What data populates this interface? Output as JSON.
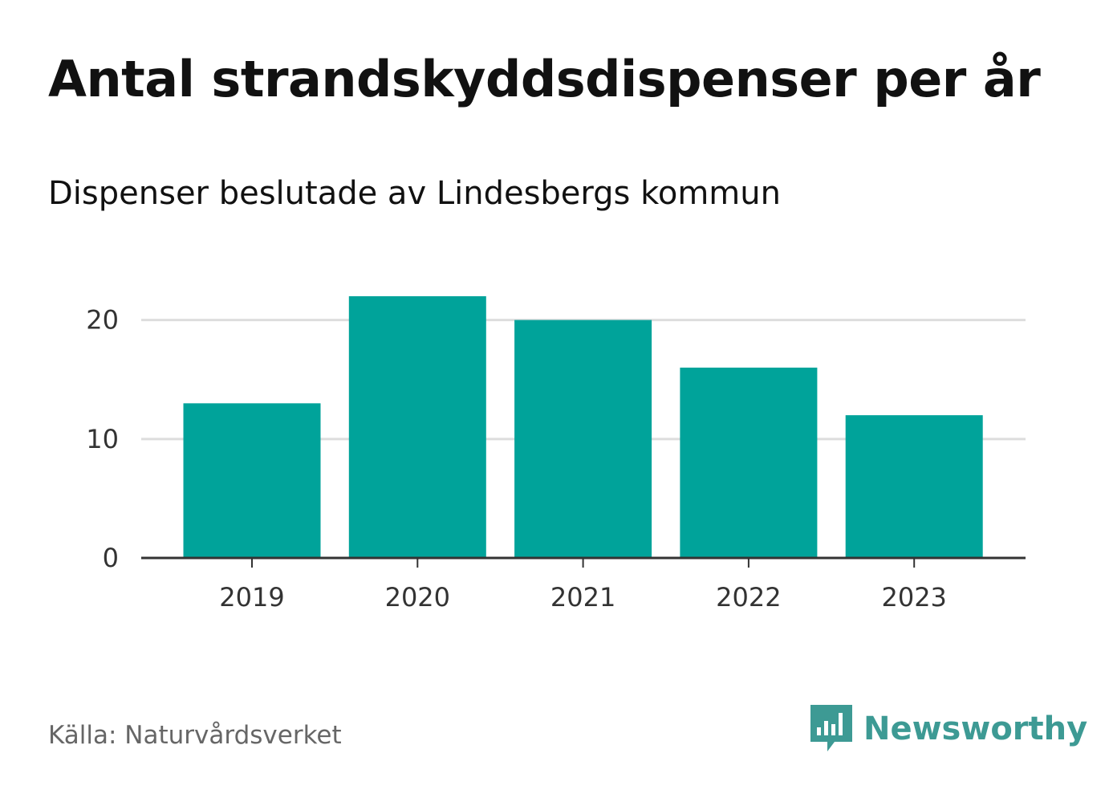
{
  "title": "Antal strandskyddsdispenser per år",
  "subtitle": "Dispenser beslutade av Lindesbergs kommun",
  "source": "Källa: Naturvårdsverket",
  "brand": {
    "name": "Newsworthy",
    "icon": "newsworthy-logo-icon",
    "color": "#3d9a94"
  },
  "colors": {
    "bar": "#00a39a",
    "grid": "#dddddd",
    "axis": "#333333"
  },
  "chart_data": {
    "type": "bar",
    "title": "Antal strandskyddsdispenser per år",
    "subtitle": "Dispenser beslutade av Lindesbergs kommun",
    "categories": [
      "2019",
      "2020",
      "2021",
      "2022",
      "2023"
    ],
    "values": [
      13,
      22,
      20,
      16,
      12
    ],
    "xlabel": "",
    "ylabel": "",
    "ylim": [
      0,
      24
    ],
    "yticks": [
      0,
      10,
      20
    ],
    "grid": true,
    "legend": "none"
  }
}
